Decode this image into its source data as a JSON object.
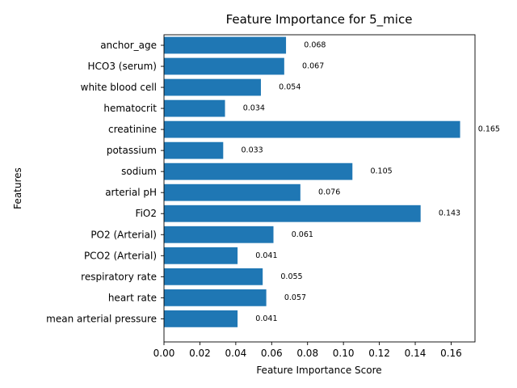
{
  "chart_data": {
    "type": "bar",
    "orientation": "horizontal",
    "title": "Feature Importance for 5_mice",
    "xlabel": "Feature Importance Score",
    "ylabel": "Features",
    "categories": [
      "mean arterial pressure",
      "heart rate",
      "respiratory rate",
      "PCO2 (Arterial)",
      "PO2 (Arterial)",
      "FiO2",
      "arterial pH",
      "sodium",
      "potassium",
      "creatinine",
      "hematocrit",
      "white blood cell",
      "HCO3 (serum)",
      "anchor_age"
    ],
    "values": [
      0.041,
      0.057,
      0.055,
      0.041,
      0.061,
      0.143,
      0.076,
      0.105,
      0.033,
      0.165,
      0.034,
      0.054,
      0.067,
      0.068
    ],
    "data_labels": [
      "0.041",
      "0.057",
      "0.055",
      "0.041",
      "0.061",
      "0.143",
      "0.076",
      "0.105",
      "0.033",
      "0.165",
      "0.034",
      "0.054",
      "0.067",
      "0.068"
    ],
    "xticks": [
      0.0,
      0.02,
      0.04,
      0.06,
      0.08,
      0.1,
      0.12,
      0.14,
      0.16
    ],
    "xtick_labels": [
      "0.00",
      "0.02",
      "0.04",
      "0.06",
      "0.08",
      "0.10",
      "0.12",
      "0.14",
      "0.16"
    ],
    "xlim": [
      0,
      0.1733
    ],
    "grid": false,
    "bar_color": "#1f77b4"
  }
}
